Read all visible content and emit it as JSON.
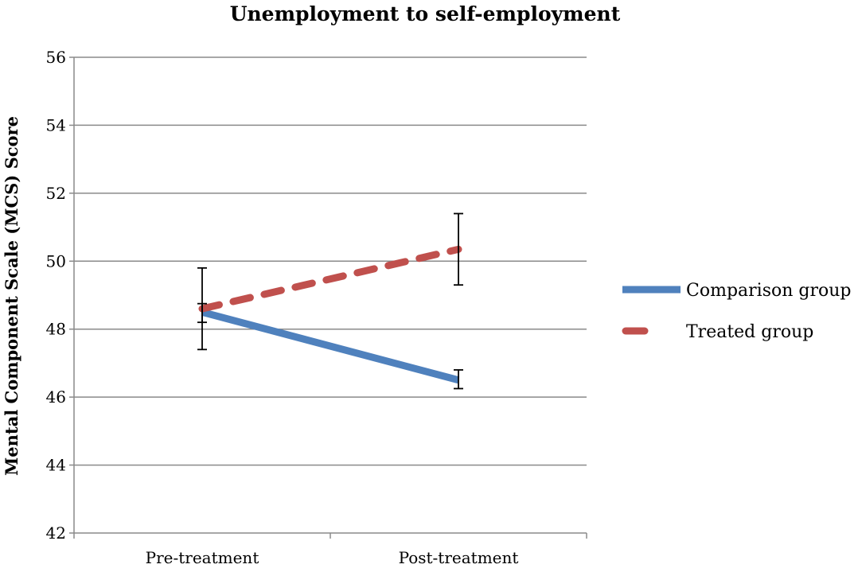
{
  "chart_data": {
    "type": "line",
    "title": "Unemployment to self-employment",
    "xlabel": "",
    "ylabel": "Mental Component Scale (MCS) Score",
    "categories": [
      "Pre-treatment",
      "Post-treatment"
    ],
    "ylim": [
      42,
      56
    ],
    "yticks": [
      42,
      44,
      46,
      48,
      50,
      52,
      54,
      56
    ],
    "grid": true,
    "legend_position": "right",
    "series": [
      {
        "name": "Comparison group",
        "color": "#4f81bd",
        "dash": "solid",
        "values": [
          48.5,
          46.5
        ],
        "error_low": [
          48.2,
          46.25
        ],
        "error_high": [
          48.75,
          46.8
        ]
      },
      {
        "name": "Treated group",
        "color": "#c0504d",
        "dash": "dashed",
        "values": [
          48.6,
          50.35
        ],
        "error_low": [
          47.4,
          49.3
        ],
        "error_high": [
          49.8,
          51.4
        ]
      }
    ]
  }
}
